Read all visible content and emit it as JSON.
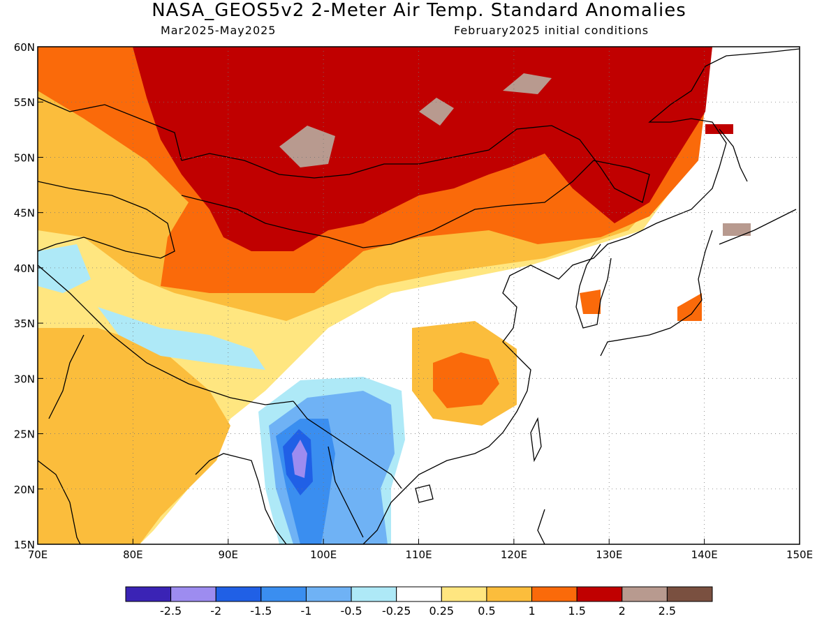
{
  "header": {
    "title": "NASA_GEOS5v2 2-Meter Air Temp. Standard Anomalies",
    "period": "Mar2025-May2025",
    "init": "February2025 initial conditions"
  },
  "map": {
    "lon_range": [
      70,
      150
    ],
    "lat_range": [
      15,
      60
    ],
    "lon_ticks": [
      "70E",
      "80E",
      "90E",
      "100E",
      "110E",
      "120E",
      "130E",
      "140E",
      "150E"
    ],
    "lat_ticks": [
      "60N",
      "55N",
      "50N",
      "45N",
      "40N",
      "35N",
      "30N",
      "25N",
      "20N",
      "15N"
    ]
  },
  "colorbar": {
    "colors": [
      "#3a23b5",
      "#9d8cf0",
      "#2060e6",
      "#3a8ef0",
      "#6fb2f5",
      "#aee9f7",
      "#ffffff",
      "#ffe680",
      "#fbbd3c",
      "#fa6a0a",
      "#c00000",
      "#b89a8f",
      "#7a5040"
    ],
    "labels": [
      "-2.5",
      "-2",
      "-1.5",
      "-1",
      "-0.5",
      "-0.25",
      "0.25",
      "0.5",
      "1",
      "1.5",
      "2",
      "2.5"
    ]
  }
}
